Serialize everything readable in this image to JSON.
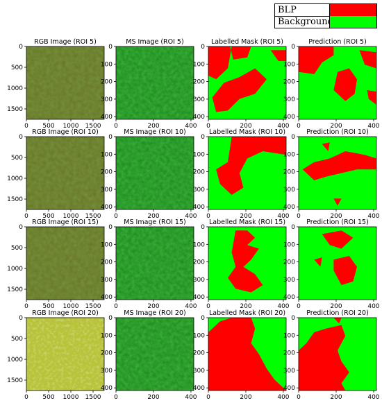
{
  "legend": {
    "items": [
      {
        "label": "BLP",
        "color": "#ff0000"
      },
      {
        "label": "Background",
        "color": "#00ff00"
      }
    ]
  },
  "colors": {
    "mask_fg": "#ff0000",
    "mask_bg": "#00ff00",
    "rgb_base": "#6b7a2a",
    "rgb_base_roi20": "#b8c33a",
    "ms_base": "#1f8f1f"
  },
  "rows": [
    {
      "roi": 5,
      "titles": [
        "RGB Image (ROI 5)",
        "MS Image (ROI 5)",
        "Labelled Mask (ROI 5)",
        "Prediction (ROI 5)"
      ]
    },
    {
      "roi": 10,
      "titles": [
        "RGB Image (ROI 10)",
        "MS Image (ROI 10)",
        "Labelled Mask (ROI 10)",
        "Prediction (ROI 10)"
      ]
    },
    {
      "roi": 15,
      "titles": [
        "RGB Image (ROI 15)",
        "MS Image (ROI 15)",
        "Labelled Mask (ROI 15)",
        "Prediction (ROI 15)"
      ]
    },
    {
      "roi": 20,
      "titles": [
        "RGB Image (ROI 20)",
        "MS Image (ROI 20)",
        "Labelled Mask (ROI 20)",
        "Prediction (ROI 20)"
      ]
    }
  ],
  "axes": {
    "rgb": {
      "x_ticks": [
        "0",
        "500",
        "1000",
        "1500"
      ],
      "y_ticks": [
        "0",
        "500",
        "1000",
        "1500"
      ]
    },
    "small": {
      "x_ticks": [
        "0",
        "200",
        "400"
      ],
      "y_ticks": [
        "0",
        "100",
        "200",
        "300",
        "400"
      ]
    }
  }
}
